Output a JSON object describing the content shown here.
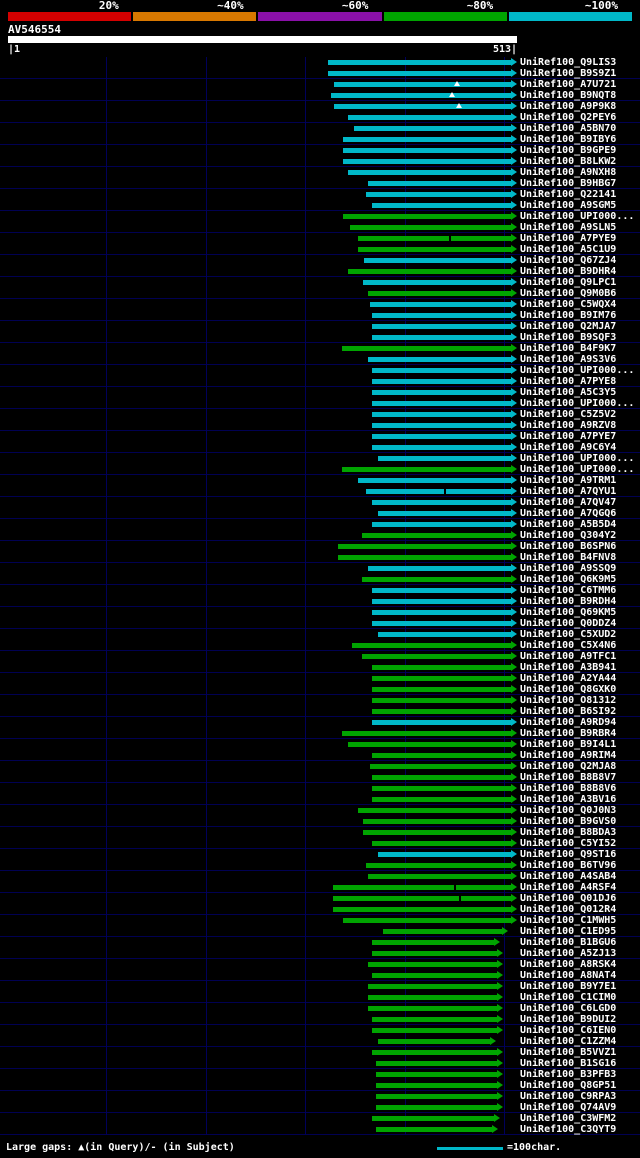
{
  "header": {
    "scale": {
      "segments": [
        {
          "label": "20%",
          "color": "#d40000"
        },
        {
          "label": "~40%",
          "color": "#d87800"
        },
        {
          "label": "~60%",
          "color": "#8a10a8"
        },
        {
          "label": "~80%",
          "color": "#00a400"
        },
        {
          "label": "~100%",
          "color": "#00b8c8"
        }
      ]
    },
    "query_name": "AV546554",
    "axis_start": "|1",
    "axis_end": "513|"
  },
  "footer": {
    "gaps_note": "Large gaps: ▲(in Query)/- (in Subject)",
    "scale_legend": "=100char.",
    "legend_color": "#00b8c8"
  },
  "chart_data": {
    "type": "bar",
    "orientation": "horizontal",
    "query": {
      "name": "AV546554",
      "start": 1,
      "end": 513
    },
    "x_range": [
      1,
      513
    ],
    "gridlines_x": [
      100,
      200,
      300,
      400,
      500
    ],
    "bar_colors": {
      "c": "#00b8c8",
      "g": "#00a400"
    },
    "mark_types": {
      "q": "large-gap-in-query",
      "s": "large-gap-in-subject"
    },
    "row_format": [
      "label",
      "start",
      "end",
      "color",
      "marks"
    ],
    "rows": [
      [
        "UniRef100_Q9LIS3",
        323,
        513,
        "c"
      ],
      [
        "UniRef100_B9S9Z1",
        323,
        513,
        "c"
      ],
      [
        "UniRef100_A7U721",
        329,
        513,
        "c",
        [
          [
            453,
            "q"
          ]
        ]
      ],
      [
        "UniRef100_B9NQT8",
        326,
        513,
        "c",
        [
          [
            448,
            "q"
          ]
        ]
      ],
      [
        "UniRef100_A9P9K8",
        329,
        513,
        "c",
        [
          [
            455,
            "q"
          ]
        ]
      ],
      [
        "UniRef100_Q2PEY6",
        343,
        513,
        "c"
      ],
      [
        "UniRef100_A5BN70",
        349,
        513,
        "c"
      ],
      [
        "UniRef100_B9IBY6",
        338,
        513,
        "c"
      ],
      [
        "UniRef100_B9GPE9",
        338,
        513,
        "c"
      ],
      [
        "UniRef100_B8LKW2",
        338,
        513,
        "c"
      ],
      [
        "UniRef100_A9NXH8",
        343,
        513,
        "c"
      ],
      [
        "UniRef100_B9HBG7",
        363,
        513,
        "c"
      ],
      [
        "UniRef100_Q22141",
        361,
        513,
        "c"
      ],
      [
        "UniRef100_A9SGM5",
        367,
        513,
        "c"
      ],
      [
        "UniRef100_UPI000...",
        338,
        513,
        "g"
      ],
      [
        "UniRef100_A9SLN5",
        345,
        513,
        "g"
      ],
      [
        "UniRef100_A7PYE9",
        353,
        513,
        "g",
        [
          [
            448,
            "s"
          ]
        ]
      ],
      [
        "UniRef100_A5C1U9",
        353,
        513,
        "g"
      ],
      [
        "UniRef100_Q67ZJ4",
        359,
        513,
        "c"
      ],
      [
        "UniRef100_B9DHR4",
        343,
        513,
        "g"
      ],
      [
        "UniRef100_Q9LPC1",
        358,
        513,
        "c"
      ],
      [
        "UniRef100_Q9M0B6",
        363,
        513,
        "g"
      ],
      [
        "UniRef100_C5WQX4",
        365,
        513,
        "c"
      ],
      [
        "UniRef100_B9IM76",
        367,
        513,
        "c"
      ],
      [
        "UniRef100_Q2MJA7",
        367,
        513,
        "c"
      ],
      [
        "UniRef100_B9SQF3",
        367,
        513,
        "c"
      ],
      [
        "UniRef100_B4F9K7",
        337,
        513,
        "g"
      ],
      [
        "UniRef100_A9S3V6",
        363,
        513,
        "c"
      ],
      [
        "UniRef100_UPI000...",
        367,
        513,
        "c"
      ],
      [
        "UniRef100_A7PYE8",
        367,
        513,
        "c"
      ],
      [
        "UniRef100_A5C3Y5",
        367,
        513,
        "c"
      ],
      [
        "UniRef100_UPI000...",
        367,
        513,
        "c"
      ],
      [
        "UniRef100_C5Z5V2",
        367,
        513,
        "c"
      ],
      [
        "UniRef100_A9RZV8",
        367,
        513,
        "c"
      ],
      [
        "UniRef100_A7PYE7",
        367,
        513,
        "c"
      ],
      [
        "UniRef100_A9C6Y4",
        367,
        513,
        "c"
      ],
      [
        "UniRef100_UPI000...",
        373,
        513,
        "c"
      ],
      [
        "UniRef100_UPI000...",
        337,
        513,
        "g"
      ],
      [
        "UniRef100_A9TRM1",
        353,
        513,
        "c"
      ],
      [
        "UniRef100_A7QYU1",
        361,
        513,
        "c",
        [
          [
            443,
            "s"
          ]
        ]
      ],
      [
        "UniRef100_A7QV47",
        367,
        513,
        "c"
      ],
      [
        "UniRef100_A7QGQ6",
        373,
        513,
        "c"
      ],
      [
        "UniRef100_A5B5D4",
        367,
        513,
        "c"
      ],
      [
        "UniRef100_Q304Y2",
        357,
        513,
        "g"
      ],
      [
        "UniRef100_B6SPN6",
        333,
        513,
        "g"
      ],
      [
        "UniRef100_B4FNV8",
        333,
        513,
        "g"
      ],
      [
        "UniRef100_A9SSQ9",
        363,
        513,
        "c"
      ],
      [
        "UniRef100_Q6K9M5",
        357,
        513,
        "g"
      ],
      [
        "UniRef100_C6TMM6",
        367,
        513,
        "c"
      ],
      [
        "UniRef100_B9RDH4",
        367,
        513,
        "c"
      ],
      [
        "UniRef100_Q69KM5",
        367,
        513,
        "c"
      ],
      [
        "UniRef100_Q0DDZ4",
        367,
        513,
        "c"
      ],
      [
        "UniRef100_C5XUD2",
        373,
        513,
        "c"
      ],
      [
        "UniRef100_C5X4N6",
        347,
        513,
        "g"
      ],
      [
        "UniRef100_A9TFC1",
        357,
        513,
        "g"
      ],
      [
        "UniRef100_A3B941",
        367,
        513,
        "g"
      ],
      [
        "UniRef100_A2YA44",
        367,
        513,
        "g"
      ],
      [
        "UniRef100_Q8GXK0",
        367,
        513,
        "g"
      ],
      [
        "UniRef100_O81312",
        367,
        513,
        "g"
      ],
      [
        "UniRef100_B6SI92",
        367,
        513,
        "g"
      ],
      [
        "UniRef100_A9RD94",
        367,
        513,
        "c"
      ],
      [
        "UniRef100_B9RBR4",
        337,
        513,
        "g"
      ],
      [
        "UniRef100_B9I4L1",
        343,
        513,
        "g"
      ],
      [
        "UniRef100_A9RIM4",
        367,
        513,
        "g"
      ],
      [
        "UniRef100_Q2MJA8",
        365,
        513,
        "g"
      ],
      [
        "UniRef100_B8B8V7",
        367,
        513,
        "g"
      ],
      [
        "UniRef100_B8B8V6",
        367,
        513,
        "g"
      ],
      [
        "UniRef100_A3BV16",
        367,
        513,
        "g"
      ],
      [
        "UniRef100_Q0J0N3",
        353,
        513,
        "g"
      ],
      [
        "UniRef100_B9GVS0",
        358,
        513,
        "g"
      ],
      [
        "UniRef100_B8BDA3",
        358,
        513,
        "g"
      ],
      [
        "UniRef100_C5YI52",
        367,
        513,
        "g"
      ],
      [
        "UniRef100_Q9ST16",
        373,
        513,
        "c"
      ],
      [
        "UniRef100_B6TV96",
        361,
        513,
        "g"
      ],
      [
        "UniRef100_A4SAB4",
        363,
        513,
        "g"
      ],
      [
        "UniRef100_A4RSF4",
        328,
        513,
        "g",
        [
          [
            453,
            "s"
          ]
        ]
      ],
      [
        "UniRef100_Q01DJ6",
        328,
        513,
        "g",
        [
          [
            458,
            "s"
          ]
        ]
      ],
      [
        "UniRef100_Q012R4",
        328,
        513,
        "g"
      ],
      [
        "UniRef100_C1MWH5",
        338,
        513,
        "g"
      ],
      [
        "UniRef100_C1ED95",
        378,
        504,
        "g"
      ],
      [
        "UniRef100_B1BGU6",
        367,
        496,
        "g"
      ],
      [
        "UniRef100_A5ZJ13",
        367,
        499,
        "g"
      ],
      [
        "UniRef100_A8RSK4",
        363,
        499,
        "g"
      ],
      [
        "UniRef100_A8NAT4",
        367,
        499,
        "g"
      ],
      [
        "UniRef100_B9Y7E1",
        363,
        499,
        "g"
      ],
      [
        "UniRef100_C1CIM0",
        363,
        499,
        "g"
      ],
      [
        "UniRef100_C6LGD0",
        363,
        499,
        "g"
      ],
      [
        "UniRef100_B9DUI2",
        367,
        499,
        "g"
      ],
      [
        "UniRef100_C6IEN0",
        367,
        499,
        "g"
      ],
      [
        "UniRef100_C1ZZM4",
        373,
        492,
        "g"
      ],
      [
        "UniRef100_B5VVZ1",
        367,
        499,
        "g"
      ],
      [
        "UniRef100_B1SG16",
        371,
        499,
        "g"
      ],
      [
        "UniRef100_B3PFB3",
        371,
        499,
        "g"
      ],
      [
        "UniRef100_Q8GP51",
        371,
        499,
        "g"
      ],
      [
        "UniRef100_C9RPA3",
        371,
        499,
        "g"
      ],
      [
        "UniRef100_Q74AV9",
        371,
        499,
        "g"
      ],
      [
        "UniRef100_C3WFM2",
        367,
        496,
        "g"
      ],
      [
        "UniRef100_C3QYT9",
        371,
        494,
        "g"
      ]
    ]
  }
}
